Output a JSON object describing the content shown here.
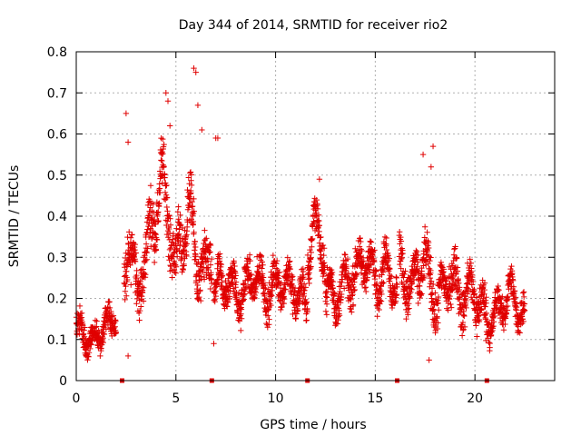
{
  "chart_data": {
    "type": "scatter",
    "title": "Day 344 of 2014, SRMTID for receiver rio2",
    "xlabel": "GPS time / hours",
    "ylabel": "SRMTID / TECUs",
    "xlim": [
      0,
      24
    ],
    "ylim": [
      0,
      0.8
    ],
    "grid": true,
    "marker": "+",
    "color": "#e00000",
    "x_ticks": [
      {
        "value": 0,
        "label": "0"
      },
      {
        "value": 5,
        "label": "5"
      },
      {
        "value": 10,
        "label": "10"
      },
      {
        "value": 15,
        "label": "15"
      },
      {
        "value": 20,
        "label": "20"
      }
    ],
    "y_ticks": [
      {
        "value": 0,
        "label": "0"
      },
      {
        "value": 0.1,
        "label": "0.1"
      },
      {
        "value": 0.2,
        "label": "0.2"
      },
      {
        "value": 0.3,
        "label": "0.3"
      },
      {
        "value": 0.4,
        "label": "0.4"
      },
      {
        "value": 0.5,
        "label": "0.5"
      },
      {
        "value": 0.6,
        "label": "0.6"
      },
      {
        "value": 0.7,
        "label": "0.7"
      },
      {
        "value": 0.8,
        "label": "0.8"
      }
    ],
    "zero_markers_x": [
      2.3,
      6.8,
      11.6,
      16.1,
      20.6
    ],
    "segments": [
      {
        "x0": 0.0,
        "x1": 2.0,
        "base": [
          0.13,
          0.11,
          0.09,
          0.12,
          0.14,
          0.16
        ],
        "spread": 0.045
      },
      {
        "x0": 2.4,
        "x1": 3.3,
        "base": [
          0.22,
          0.36,
          0.3,
          0.18,
          0.28
        ],
        "spread": 0.09
      },
      {
        "x0": 3.3,
        "x1": 4.9,
        "base": [
          0.28,
          0.34,
          0.4,
          0.5,
          0.42,
          0.32
        ],
        "spread": 0.09
      },
      {
        "x0": 4.9,
        "x1": 6.8,
        "base": [
          0.26,
          0.34,
          0.42,
          0.3,
          0.24,
          0.32
        ],
        "spread": 0.09
      },
      {
        "x0": 6.9,
        "x1": 11.6,
        "base": [
          0.22,
          0.24,
          0.2,
          0.26,
          0.21,
          0.25,
          0.22,
          0.18
        ],
        "spread": 0.065
      },
      {
        "x0": 11.6,
        "x1": 12.5,
        "base": [
          0.28,
          0.4,
          0.34,
          0.3
        ],
        "spread": 0.07
      },
      {
        "x0": 12.5,
        "x1": 16.1,
        "base": [
          0.22,
          0.2,
          0.24,
          0.26,
          0.3,
          0.24,
          0.28,
          0.22
        ],
        "spread": 0.065
      },
      {
        "x0": 16.2,
        "x1": 20.6,
        "base": [
          0.28,
          0.22,
          0.3,
          0.18,
          0.26,
          0.2,
          0.22,
          0.14
        ],
        "spread": 0.075
      },
      {
        "x0": 20.6,
        "x1": 22.5,
        "base": [
          0.14,
          0.16,
          0.18,
          0.22,
          0.18,
          0.16
        ],
        "spread": 0.055
      }
    ],
    "highlights": [
      {
        "x": 2.5,
        "y": 0.65
      },
      {
        "x": 2.6,
        "y": 0.58
      },
      {
        "x": 4.5,
        "y": 0.7
      },
      {
        "x": 4.6,
        "y": 0.68
      },
      {
        "x": 4.7,
        "y": 0.62
      },
      {
        "x": 5.9,
        "y": 0.76
      },
      {
        "x": 6.0,
        "y": 0.75
      },
      {
        "x": 6.1,
        "y": 0.67
      },
      {
        "x": 6.3,
        "y": 0.61
      },
      {
        "x": 7.0,
        "y": 0.59
      },
      {
        "x": 7.1,
        "y": 0.59
      },
      {
        "x": 6.9,
        "y": 0.09
      },
      {
        "x": 17.4,
        "y": 0.55
      },
      {
        "x": 17.9,
        "y": 0.57
      },
      {
        "x": 17.8,
        "y": 0.52
      },
      {
        "x": 17.7,
        "y": 0.05
      },
      {
        "x": 12.2,
        "y": 0.49
      },
      {
        "x": 2.6,
        "y": 0.06
      },
      {
        "x": 1.2,
        "y": 0.06
      }
    ]
  }
}
